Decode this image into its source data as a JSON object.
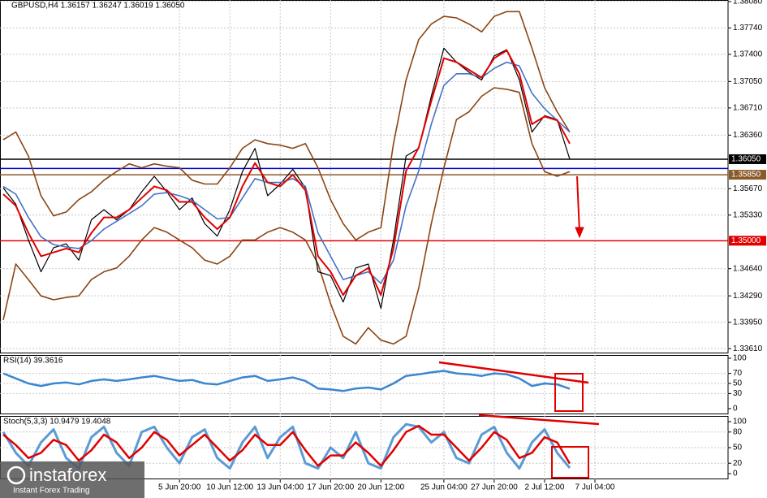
{
  "chart_data": [
    {
      "type": "line",
      "title": "GBPUSD,H4 1.36157 1.36247 1.36019 1.36050",
      "categories": [
        null,
        null,
        null,
        null,
        null,
        null,
        null,
        null,
        null,
        null,
        null,
        null,
        null,
        null,
        "5 Jun 20:00",
        null,
        null,
        null,
        "10 Jun 12:00",
        null,
        null,
        null,
        "13 Jun 04:00",
        null,
        null,
        null,
        "17 Jun 20:00",
        null,
        null,
        null,
        "20 Jun 12:00",
        null,
        null,
        null,
        null,
        "25 Jun 04:00",
        null,
        null,
        null,
        "27 Jun 20:00",
        null,
        null,
        null,
        "2 Jul 12:00",
        null,
        null,
        null,
        "7 Jul 04:00"
      ],
      "series": [
        {
          "color": "#8b4513",
          "width": 1.6,
          "values": [
            1.363,
            1.364,
            1.3609,
            1.3558,
            1.3532,
            1.3537,
            1.3553,
            1.3563,
            1.3578,
            1.3589,
            1.3599,
            1.3594,
            1.3599,
            1.3596,
            1.3594,
            1.3578,
            1.3573,
            1.3573,
            1.3594,
            1.3619,
            1.363,
            1.3625,
            1.3623,
            1.3619,
            1.3625,
            1.3594,
            1.3553,
            1.3522,
            1.3501,
            1.3511,
            1.3517,
            1.3625,
            1.3707,
            1.3759,
            1.3779,
            1.3789,
            1.3787,
            1.3779,
            1.3769,
            1.3789,
            1.3795,
            1.3795,
            1.3748,
            1.3697,
            1.3666,
            1.364,
            null,
            null
          ]
        },
        {
          "color": "#8b4513",
          "width": 1.6,
          "values": [
            1.3398,
            1.347,
            1.345,
            1.3429,
            1.3424,
            1.3427,
            1.3429,
            1.345,
            1.346,
            1.3465,
            1.348,
            1.3501,
            1.3517,
            1.3511,
            1.3501,
            1.3491,
            1.3475,
            1.347,
            1.348,
            1.3501,
            1.3501,
            1.3511,
            1.3517,
            1.3511,
            1.3501,
            1.347,
            1.3419,
            1.3377,
            1.3367,
            1.3388,
            1.3372,
            1.3367,
            1.3377,
            1.3439,
            1.3522,
            1.3594,
            1.3656,
            1.3666,
            1.3686,
            1.3697,
            1.3695,
            1.3691,
            1.3625,
            1.3589,
            1.3583,
            1.3589,
            null,
            null
          ]
        },
        {
          "color": "#000000",
          "width": 1.2,
          "values": [
            1.3568,
            1.3547,
            1.3501,
            1.346,
            1.3491,
            1.3496,
            1.3475,
            1.3527,
            1.354,
            1.3527,
            1.354,
            1.3563,
            1.3583,
            1.3563,
            1.354,
            1.3555,
            1.3522,
            1.3506,
            1.354,
            1.3589,
            1.3619,
            1.3558,
            1.3573,
            1.3592,
            1.3568,
            1.346,
            1.3455,
            1.3421,
            1.3465,
            1.347,
            1.3413,
            1.3501,
            1.3609,
            1.3619,
            1.3686,
            1.3748,
            1.373,
            1.3717,
            1.3707,
            1.3738,
            1.3746,
            1.3707,
            1.364,
            1.3661,
            1.3656,
            1.3605,
            null,
            null
          ]
        },
        {
          "color": "#4472c4",
          "width": 1.6,
          "values": [
            1.357,
            1.356,
            1.353,
            1.3505,
            1.3495,
            1.3492,
            1.349,
            1.35,
            1.3515,
            1.3525,
            1.3535,
            1.3545,
            1.356,
            1.3562,
            1.3558,
            1.3552,
            1.354,
            1.3528,
            1.353,
            1.3555,
            1.358,
            1.3575,
            1.3575,
            1.358,
            1.357,
            1.351,
            1.348,
            1.345,
            1.3455,
            1.346,
            1.3445,
            1.3475,
            1.3545,
            1.359,
            1.365,
            1.37,
            1.3715,
            1.3715,
            1.371,
            1.3722,
            1.373,
            1.3725,
            1.369,
            1.367,
            1.3655,
            1.364,
            null,
            null
          ]
        },
        {
          "color": "#e00000",
          "width": 2,
          "values": [
            1.356,
            1.3545,
            1.351,
            1.348,
            1.3485,
            1.349,
            1.3485,
            1.351,
            1.353,
            1.353,
            1.354,
            1.3555,
            1.357,
            1.3565,
            1.355,
            1.355,
            1.353,
            1.3515,
            1.353,
            1.357,
            1.36,
            1.3575,
            1.357,
            1.3585,
            1.3565,
            1.348,
            1.346,
            1.343,
            1.3455,
            1.3465,
            1.343,
            1.349,
            1.359,
            1.362,
            1.368,
            1.3735,
            1.373,
            1.372,
            1.371,
            1.3735,
            1.3745,
            1.3715,
            1.365,
            1.366,
            1.3655,
            1.3625,
            null,
            null
          ]
        }
      ],
      "levels": [
        {
          "value": 1.3605,
          "label": "1.36050",
          "color": "#000000"
        },
        {
          "value": 1.3593,
          "color": "#0000cc"
        },
        {
          "value": 1.3585,
          "label": "1.35850",
          "color": "#8b5a2b"
        },
        {
          "value": 1.35,
          "label": "1.35000",
          "color": "#e00000"
        }
      ],
      "ylim": [
        1.3357,
        1.381
      ],
      "yticks": [
        {
          "value": 1.3808,
          "label": "1.38080"
        },
        {
          "value": 1.3774,
          "label": "1.37740"
        },
        {
          "value": 1.374,
          "label": "1.37400"
        },
        {
          "value": 1.3705,
          "label": "1.37050"
        },
        {
          "value": 1.3671,
          "label": "1.36710"
        },
        {
          "value": 1.3636,
          "label": "1.36360"
        },
        {
          "value": 1.3567,
          "label": "1.35670"
        },
        {
          "value": 1.3533,
          "label": "1.35330"
        },
        {
          "value": 1.3464,
          "label": "1.34640"
        },
        {
          "value": 1.3429,
          "label": "1.34290"
        },
        {
          "value": 1.3395,
          "label": "1.33950"
        },
        {
          "value": 1.3361,
          "label": "1.33610"
        }
      ],
      "grid": true
    },
    {
      "type": "line",
      "title": "RSI(14) 39.3616",
      "series": [
        {
          "color": "#3a86d0",
          "width": 2.5,
          "values": [
            70,
            60,
            50,
            45,
            50,
            52,
            48,
            55,
            58,
            55,
            58,
            62,
            65,
            60,
            55,
            57,
            50,
            48,
            55,
            62,
            65,
            55,
            58,
            62,
            55,
            40,
            38,
            35,
            40,
            42,
            38,
            50,
            65,
            68,
            72,
            75,
            70,
            68,
            65,
            70,
            68,
            60,
            45,
            50,
            48,
            39.3616,
            null,
            null
          ]
        }
      ],
      "ylim": [
        0,
        100
      ],
      "yticks": [
        100,
        70,
        50,
        30,
        0
      ],
      "grid": true
    },
    {
      "type": "line",
      "title": "Stoch(5,3,3) 10.9479 19.4048",
      "series": [
        {
          "color": "#5b9bd5",
          "width": 3,
          "values": [
            80,
            40,
            15,
            60,
            85,
            30,
            10,
            70,
            90,
            40,
            15,
            80,
            90,
            50,
            20,
            70,
            85,
            30,
            10,
            60,
            90,
            30,
            70,
            90,
            20,
            10,
            50,
            30,
            80,
            20,
            10,
            70,
            95,
            90,
            60,
            80,
            30,
            20,
            75,
            90,
            40,
            10,
            60,
            85,
            40,
            10.9479,
            null,
            null
          ]
        },
        {
          "color": "#e00000",
          "width": 2.5,
          "values": [
            75,
            55,
            30,
            40,
            65,
            55,
            25,
            45,
            75,
            60,
            30,
            50,
            80,
            65,
            35,
            55,
            75,
            50,
            25,
            45,
            75,
            55,
            55,
            80,
            45,
            15,
            35,
            35,
            60,
            40,
            15,
            45,
            80,
            92,
            75,
            75,
            50,
            25,
            50,
            80,
            65,
            30,
            40,
            70,
            60,
            19.4048,
            null,
            null
          ]
        }
      ],
      "ylim": [
        0,
        100
      ],
      "yticks": [
        100,
        80,
        50,
        20,
        0
      ],
      "grid": true
    }
  ],
  "watermark": {
    "brand": "instaforex",
    "tagline": "Instant Forex Trading"
  }
}
